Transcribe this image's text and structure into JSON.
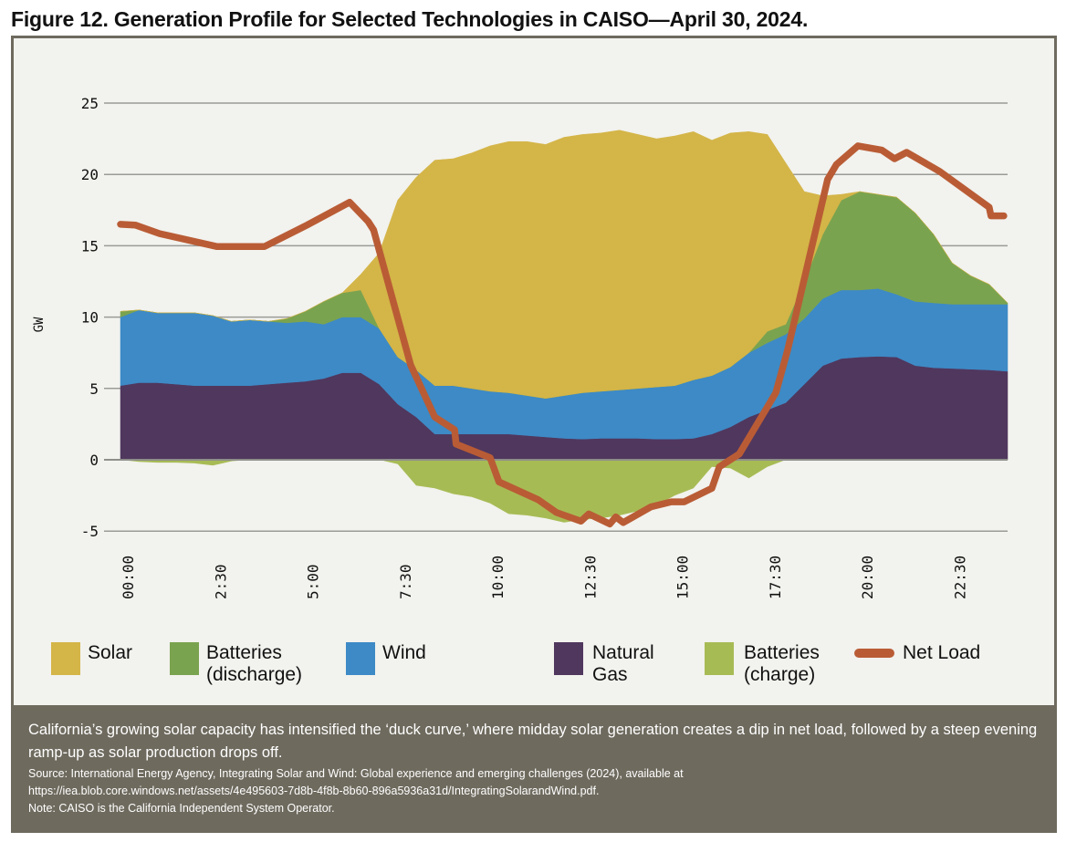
{
  "title": "Figure 12. Generation Profile for Selected Technologies in CAISO—April 30, 2024.",
  "chart_data": {
    "type": "area",
    "stacked": true,
    "ylabel": "GW",
    "xlabel": "",
    "ylim": [
      -5,
      25
    ],
    "yticks": [
      "25",
      "20",
      "15",
      "10",
      "5",
      "0",
      "-5"
    ],
    "ytick_values": [
      25,
      20,
      15,
      10,
      5,
      0,
      -5
    ],
    "xlim_hours": [
      0,
      24
    ],
    "xticks": [
      "00:00",
      "2:30",
      "5:00",
      "7:30",
      "10:00",
      "12:30",
      "15:00",
      "17:30",
      "20:00",
      "22:30"
    ],
    "xtick_hours": [
      0,
      2.5,
      5,
      7.5,
      10,
      12.5,
      15,
      17.5,
      20,
      22.5
    ],
    "grid": true,
    "legend_position": "bottom",
    "x_hours": [
      0,
      0.5,
      1,
      1.5,
      2,
      2.5,
      3,
      3.5,
      4,
      4.5,
      5,
      5.5,
      6,
      6.5,
      7,
      7.5,
      8,
      8.5,
      9,
      9.5,
      10,
      10.5,
      11,
      11.5,
      12,
      12.5,
      13,
      13.5,
      14,
      14.5,
      15,
      15.5,
      16,
      16.5,
      17,
      17.5,
      18,
      18.5,
      19,
      19.5,
      20,
      20.5,
      21,
      21.5,
      22,
      22.5,
      23,
      23.5,
      24
    ],
    "series": [
      {
        "name": "Natural Gas",
        "color": "#50375e",
        "values": [
          5.2,
          5.4,
          5.4,
          5.3,
          5.2,
          5.2,
          5.2,
          5.2,
          5.3,
          5.4,
          5.5,
          5.7,
          6.1,
          6.1,
          5.3,
          3.9,
          3.0,
          1.8,
          1.8,
          1.8,
          1.8,
          1.8,
          1.7,
          1.6,
          1.5,
          1.45,
          1.5,
          1.5,
          1.5,
          1.45,
          1.45,
          1.5,
          1.8,
          2.3,
          3.0,
          3.5,
          4.0,
          5.3,
          6.6,
          7.1,
          7.2,
          7.25,
          7.2,
          6.6,
          6.45,
          6.4,
          6.35,
          6.3,
          6.2
        ]
      },
      {
        "name": "Wind",
        "color": "#3d8ac6",
        "values": [
          4.8,
          5.1,
          4.9,
          5.0,
          5.1,
          4.9,
          4.5,
          4.6,
          4.4,
          4.2,
          4.2,
          3.8,
          3.9,
          3.9,
          3.9,
          3.3,
          3.3,
          3.4,
          3.4,
          3.2,
          3.0,
          2.9,
          2.8,
          2.7,
          3.0,
          3.25,
          3.3,
          3.4,
          3.5,
          3.65,
          3.75,
          4.1,
          4.1,
          4.2,
          4.5,
          4.7,
          4.8,
          4.6,
          4.7,
          4.8,
          4.7,
          4.75,
          4.4,
          4.5,
          4.55,
          4.5,
          4.55,
          4.6,
          4.7
        ]
      },
      {
        "name": "Batteries (discharge)",
        "color": "#7aa34f",
        "values": [
          0.4,
          0,
          0,
          0,
          0,
          0,
          0,
          0,
          0,
          0.3,
          0.7,
          1.6,
          1.7,
          1.9,
          0,
          0,
          0,
          0,
          0,
          0,
          0,
          0,
          0,
          0,
          0,
          0,
          0,
          0,
          0,
          0,
          0,
          0,
          0,
          0,
          0,
          0.8,
          0.7,
          2.6,
          4.5,
          6.3,
          6.9,
          6.6,
          6.8,
          6.2,
          4.8,
          2.9,
          2.0,
          1.4,
          0.1
        ]
      },
      {
        "name": "Solar",
        "color": "#d4b548",
        "values": [
          0,
          0,
          0,
          0,
          0,
          0,
          0,
          0,
          0,
          0,
          0,
          0,
          0,
          1.1,
          5.3,
          11.0,
          13.5,
          15.8,
          15.9,
          16.5,
          17.2,
          17.6,
          17.8,
          17.8,
          18.1,
          18.1,
          18.1,
          18.2,
          17.8,
          17.4,
          17.5,
          17.4,
          16.5,
          16.4,
          15.5,
          13.8,
          11.3,
          6.3,
          2.7,
          0.4,
          0,
          0,
          0,
          0,
          0,
          0,
          0,
          0,
          0
        ]
      },
      {
        "name": "Batteries (charge)",
        "color": "#a7bb55",
        "values": [
          0,
          -0.15,
          -0.2,
          -0.2,
          -0.25,
          -0.4,
          -0.1,
          0,
          0,
          0,
          0,
          0,
          0,
          0,
          0,
          -0.3,
          -1.8,
          -2.0,
          -2.4,
          -2.6,
          -3.05,
          -3.8,
          -3.9,
          -4.1,
          -4.4,
          -4.2,
          -4.1,
          -3.9,
          -3.6,
          -3.2,
          -2.5,
          -2.0,
          -0.5,
          -0.6,
          -1.3,
          -0.5,
          0,
          0,
          0,
          0,
          0,
          0,
          0,
          0,
          0,
          0,
          0,
          0,
          0
        ]
      }
    ],
    "net_load": {
      "name": "Net Load",
      "color": "#b95c35",
      "x_hours": [
        0,
        0.4,
        1.06,
        2.6,
        3.9,
        5.05,
        6.2,
        6.7,
        6.85,
        7.85,
        8.5,
        9.04,
        9.08,
        10.0,
        10.24,
        11.3,
        11.8,
        12.46,
        12.67,
        13.24,
        13.4,
        13.6,
        14.35,
        14.9,
        15.25,
        16.0,
        16.2,
        16.74,
        17.73,
        18.05,
        19.13,
        19.37,
        19.95,
        20.6,
        20.94,
        21.27,
        22.17,
        23.5,
        23.55,
        23.9
      ],
      "values": [
        16.5,
        16.45,
        15.85,
        14.95,
        14.95,
        16.45,
        18.05,
        16.7,
        16.1,
        6.65,
        3.0,
        2.1,
        1.1,
        0.15,
        -1.55,
        -2.8,
        -3.7,
        -4.3,
        -3.8,
        -4.5,
        -4.0,
        -4.4,
        -3.3,
        -2.95,
        -2.95,
        -2.0,
        -0.5,
        0.4,
        4.7,
        7.7,
        19.65,
        20.7,
        22.0,
        21.7,
        21.1,
        21.55,
        20.2,
        17.7,
        17.1,
        17.1
      ]
    }
  },
  "legend": [
    {
      "label": "Solar",
      "color": "#d4b548"
    },
    {
      "label": "Batteries\n(discharge)",
      "color": "#7aa34f"
    },
    {
      "label": "Wind",
      "color": "#3d8ac6"
    },
    {
      "label": "Natural\nGas",
      "color": "#50375e"
    },
    {
      "label": "Batteries\n(charge)",
      "color": "#a7bb55"
    },
    {
      "label": "Net Load",
      "color": "#b95c35"
    }
  ],
  "footer": {
    "caption": "California’s growing solar capacity has intensified the ‘duck curve,’ where midday solar generation creates a dip in net load, followed by a steep evening ramp-up as solar production drops off.",
    "source": "Source: International Energy Agency, Integrating Solar and Wind: Global experience and emerging challenges (2024), available at https://iea.blob.core.windows.net/assets/4e495603-7d8b-4f8b-8b60-896a5936a31d/IntegratingSolarandWind.pdf.",
    "note": "Note: CAISO is the California Independent System Operator."
  },
  "colors": {
    "panel_background": "#f2f2ee",
    "frame": "#6e6a5e"
  }
}
